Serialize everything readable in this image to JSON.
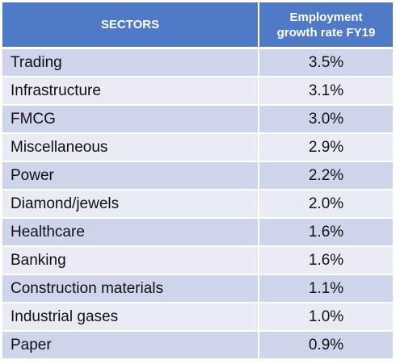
{
  "chart_data": {
    "type": "table",
    "columns": [
      "SECTORS",
      "Employment growth rate FY19"
    ],
    "header": {
      "sectors": "SECTORS",
      "rate_line1": "Employment",
      "rate_line2": "growth rate FY19"
    },
    "rows": [
      {
        "sector": "Trading",
        "rate": "3.5%"
      },
      {
        "sector": "Infrastructure",
        "rate": "3.1%"
      },
      {
        "sector": "FMCG",
        "rate": "3.0%"
      },
      {
        "sector": "Miscellaneous",
        "rate": "2.9%"
      },
      {
        "sector": "Power",
        "rate": "2.2%"
      },
      {
        "sector": "Diamond/jewels",
        "rate": "2.0%"
      },
      {
        "sector": "Healthcare",
        "rate": "1.6%"
      },
      {
        "sector": "Banking",
        "rate": "1.6%"
      },
      {
        "sector": "Construction materials",
        "rate": "1.1%"
      },
      {
        "sector": "Industrial gases",
        "rate": "1.0%"
      },
      {
        "sector": "Paper",
        "rate": "0.9%"
      }
    ],
    "categories": [
      "Trading",
      "Infrastructure",
      "FMCG",
      "Miscellaneous",
      "Power",
      "Diamond/jewels",
      "Healthcare",
      "Banking",
      "Construction materials",
      "Industrial gases",
      "Paper"
    ],
    "values": [
      3.5,
      3.1,
      3.0,
      2.9,
      2.2,
      2.0,
      1.6,
      1.6,
      1.1,
      1.0,
      0.9
    ]
  },
  "colors": {
    "header_bg": "#4f7ac7",
    "header_text": "#ffffff",
    "row_odd": "#cfd5ea",
    "row_even": "#e9ebf5"
  }
}
